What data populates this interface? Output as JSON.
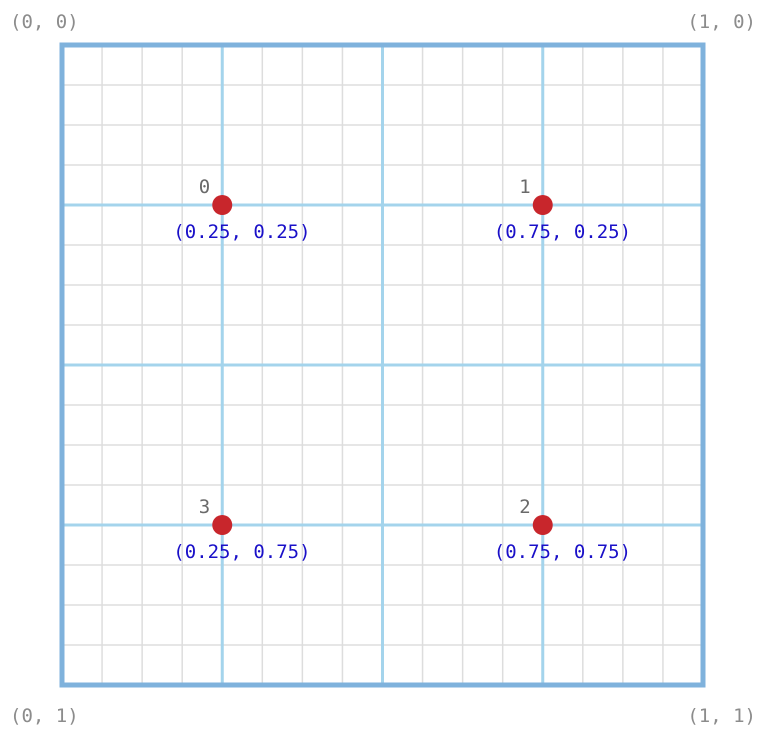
{
  "corners": {
    "top_left": "(0, 0)",
    "top_right": "(1, 0)",
    "bottom_left": "(0, 1)",
    "bottom_right": "(1, 1)"
  },
  "grid": {
    "fine_divisions": 16,
    "major_divisions": 4
  },
  "points": [
    {
      "index": "0",
      "coord": "(0.25, 0.25)",
      "x": 0.25,
      "y": 0.25
    },
    {
      "index": "1",
      "coord": "(0.75, 0.25)",
      "x": 0.75,
      "y": 0.25
    },
    {
      "index": "2",
      "coord": "(0.75, 0.75)",
      "x": 0.75,
      "y": 0.75
    },
    {
      "index": "3",
      "coord": "(0.25, 0.75)",
      "x": 0.25,
      "y": 0.75
    }
  ],
  "colors": {
    "fine_grid": "#dddddd",
    "major_grid": "#a4d4ec",
    "border": "#7fb2dc",
    "point": "#c8262c",
    "index_text": "#6a6a6a",
    "coord_text": "#1a10c8",
    "corner_text": "#8c8c8c"
  }
}
